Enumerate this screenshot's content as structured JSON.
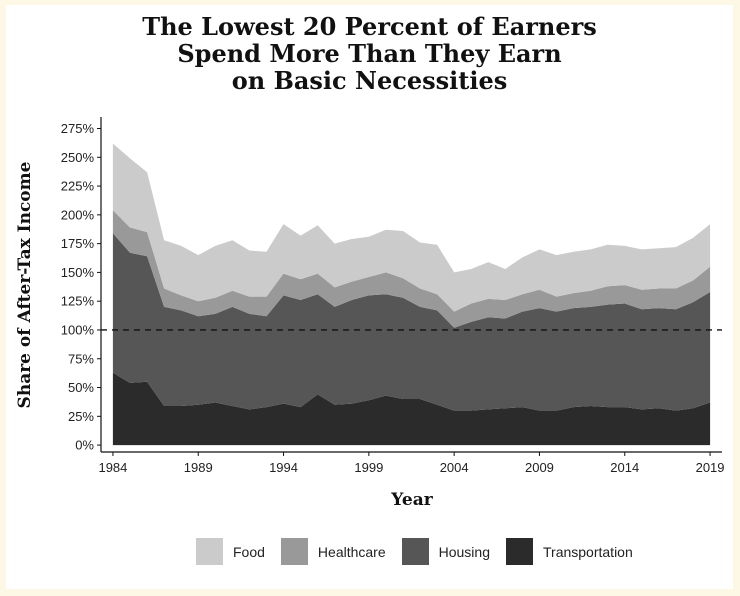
{
  "chart_data": {
    "type": "area",
    "stacked": true,
    "title_lines": [
      "The Lowest 20 Percent of Earners",
      "Spend More Than They Earn",
      "on Basic Necessities"
    ],
    "xlabel": "Year",
    "ylabel": "Share of After-Tax Income",
    "x_ticks": [
      1984,
      1989,
      1994,
      1999,
      2004,
      2009,
      2014,
      2019
    ],
    "y_ticks": [
      0,
      25,
      50,
      75,
      100,
      125,
      150,
      175,
      200,
      225,
      250,
      275
    ],
    "y_tick_labels": [
      "0%",
      "25%",
      "50%",
      "75%",
      "100%",
      "125%",
      "150%",
      "175%",
      "200%",
      "225%",
      "250%",
      "275%"
    ],
    "xlim": [
      1983.3,
      2019.7
    ],
    "ylim": [
      -6,
      285
    ],
    "reference_line": {
      "y": 100,
      "style": "dashed"
    },
    "x": [
      1984,
      1985,
      1986,
      1987,
      1988,
      1989,
      1990,
      1991,
      1992,
      1993,
      1994,
      1995,
      1996,
      1997,
      1998,
      1999,
      2000,
      2001,
      2002,
      2003,
      2004,
      2005,
      2006,
      2007,
      2008,
      2009,
      2010,
      2011,
      2012,
      2013,
      2014,
      2015,
      2016,
      2017,
      2018,
      2019
    ],
    "series": [
      {
        "name": "Transportation",
        "color": "#2b2b2b",
        "values": [
          63,
          54,
          55,
          34,
          34,
          35,
          37,
          34,
          31,
          33,
          36,
          33,
          44,
          35,
          36,
          39,
          43,
          40,
          40,
          35,
          30,
          30,
          31,
          32,
          33,
          30,
          30,
          33,
          34,
          33,
          33,
          31,
          32,
          30,
          32,
          37
        ]
      },
      {
        "name": "Housing",
        "color": "#565656",
        "values": [
          121,
          113,
          109,
          86,
          83,
          77,
          77,
          86,
          83,
          79,
          94,
          93,
          87,
          85,
          90,
          91,
          88,
          88,
          80,
          82,
          72,
          77,
          80,
          78,
          83,
          89,
          86,
          86,
          86,
          89,
          90,
          87,
          87,
          88,
          92,
          96
        ]
      },
      {
        "name": "Healthcare",
        "color": "#999999",
        "values": [
          20,
          22,
          21,
          16,
          13,
          13,
          14,
          14,
          15,
          17,
          19,
          18,
          18,
          17,
          16,
          16,
          19,
          17,
          16,
          14,
          14,
          16,
          16,
          16,
          15,
          16,
          13,
          13,
          14,
          16,
          16,
          17,
          17,
          18,
          19,
          22
        ]
      },
      {
        "name": "Food",
        "color": "#cbcbcb",
        "values": [
          58,
          60,
          52,
          42,
          43,
          40,
          45,
          44,
          40,
          39,
          43,
          38,
          42,
          38,
          37,
          35,
          37,
          41,
          40,
          43,
          34,
          30,
          32,
          27,
          32,
          35,
          36,
          36,
          36,
          36,
          34,
          35,
          35,
          36,
          37,
          37
        ]
      }
    ],
    "legend": [
      "Food",
      "Healthcare",
      "Housing",
      "Transportation"
    ],
    "legend_position": "bottom"
  }
}
